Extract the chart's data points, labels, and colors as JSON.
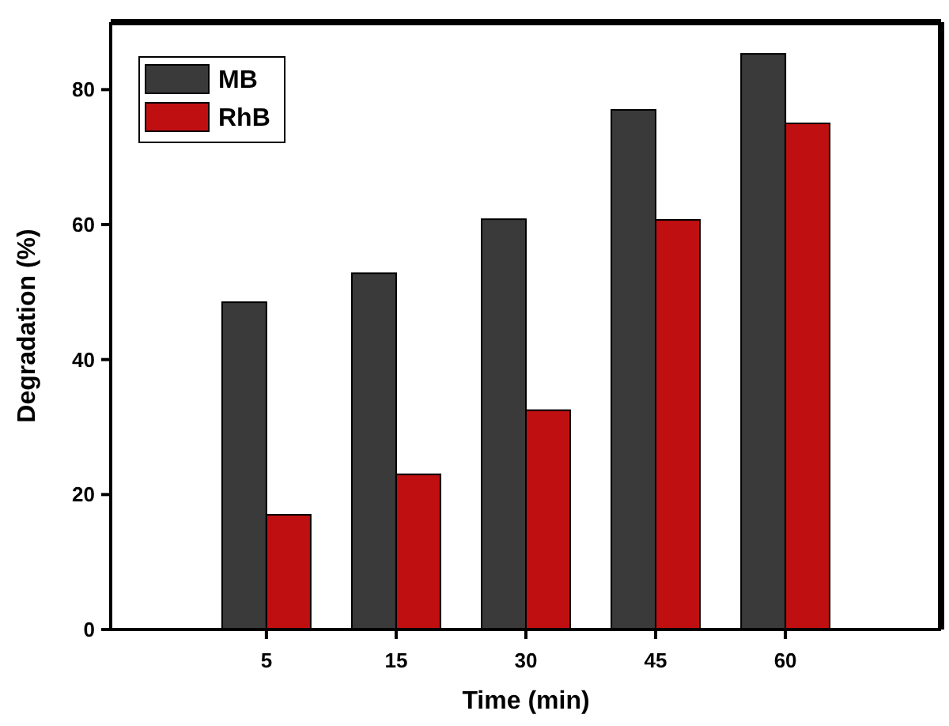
{
  "chart_data": {
    "type": "bar",
    "xlabel": "Time (min)",
    "ylabel": "Degradation (%)",
    "categories": [
      "5",
      "15",
      "30",
      "45",
      "60"
    ],
    "series": [
      {
        "name": "MB",
        "color": "#3a3a3a",
        "values": [
          48.5,
          52.8,
          60.8,
          77,
          85.3
        ]
      },
      {
        "name": "RhB",
        "color": "#c00f10",
        "values": [
          17,
          23,
          32.5,
          60.7,
          75
        ]
      }
    ],
    "ylim": [
      0,
      90
    ],
    "yticks": [
      0,
      20,
      40,
      60,
      80
    ],
    "grid": false,
    "legend": "top left"
  }
}
